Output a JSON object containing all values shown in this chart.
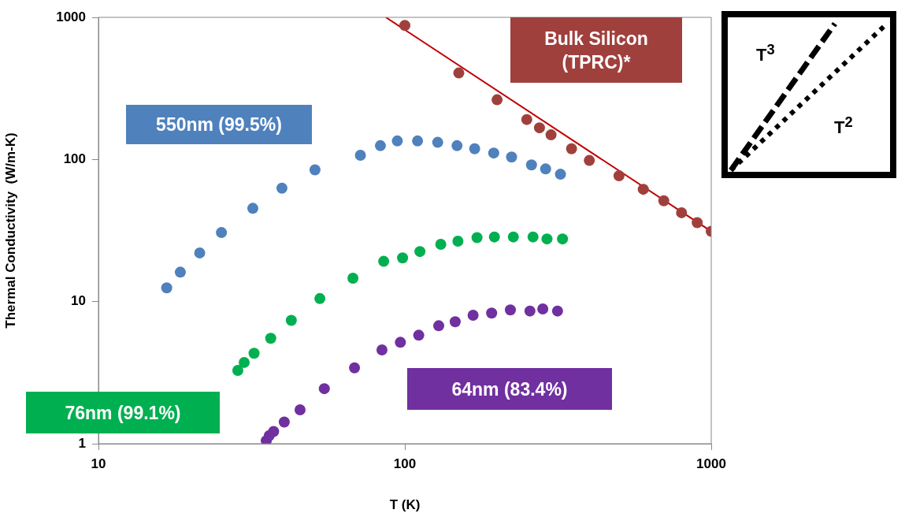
{
  "chart_data": {
    "type": "scatter",
    "xlabel": "T (K)",
    "ylabel": "Thermal Conductivity  (W/m-K)",
    "log": "xy",
    "grid": false,
    "legend": false,
    "marker": "circle",
    "xlim": [
      10,
      1000
    ],
    "xticks": [
      10,
      100,
      1000
    ],
    "ylim": [
      1,
      1000
    ],
    "yticks": [
      1,
      10,
      100,
      1000
    ],
    "annotations": [
      "T$^{3}$",
      "T$^{2}$"
    ],
    "series": [
      {
        "name": "550nm (99.5%)",
        "color": "#4f81bd",
        "x": [
          16.7,
          18.5,
          21.4,
          25.2,
          31.9,
          39.7,
          50.9,
          71.6,
          83.2,
          94.5,
          110,
          128,
          148,
          169,
          195,
          223,
          259,
          288,
          322
        ],
        "values": [
          12.5,
          16.1,
          22.0,
          30.6,
          45.3,
          62.8,
          84.5,
          107,
          125,
          135,
          135,
          132,
          125,
          119,
          111,
          104,
          91.6,
          85.8,
          78.7
        ]
      },
      {
        "name": "76nm (99.1%)",
        "color": "#00b050",
        "x": [
          28.5,
          29.9,
          32.2,
          36.5,
          42.6,
          52.8,
          67.7,
          85.3,
          98.3,
          112,
          131,
          149,
          172,
          196,
          226,
          262,
          291,
          327
        ],
        "values": [
          3.28,
          3.73,
          4.33,
          5.52,
          7.38,
          10.5,
          14.6,
          19.2,
          20.3,
          22.5,
          25.3,
          26.6,
          28.2,
          28.5,
          28.5,
          28.5,
          27.6,
          27.6
        ]
      },
      {
        "name": "64nm (83.4%)",
        "color": "#7030a0",
        "x": [
          35.3,
          36.1,
          37.3,
          40.4,
          45.5,
          54.6,
          68.5,
          84.2,
          96.7,
          111,
          129,
          146,
          167,
          192,
          221,
          256,
          282,
          315
        ],
        "values": [
          1.05,
          1.14,
          1.22,
          1.42,
          1.73,
          2.44,
          3.42,
          4.57,
          5.17,
          5.8,
          6.76,
          7.21,
          8.02,
          8.3,
          8.74,
          8.58,
          8.88,
          8.58
        ]
      },
      {
        "name": "Bulk Silicon (TPRC)*",
        "color": "#a0403d",
        "x": [
          100,
          150,
          200,
          250,
          275,
          300,
          350,
          400,
          500,
          600,
          700,
          800,
          900,
          1000
        ],
        "values": [
          878,
          406,
          263,
          191,
          167,
          149,
          119,
          98.4,
          76.7,
          61.7,
          51.2,
          42.2,
          35.9,
          31.2
        ]
      },
      {
        "type": "line",
        "color": "#c00000",
        "marker": "none",
        "line_style": "solid",
        "x": [
          86.7,
          1000
        ],
        "values": [
          1000,
          31.2
        ]
      }
    ]
  }
}
